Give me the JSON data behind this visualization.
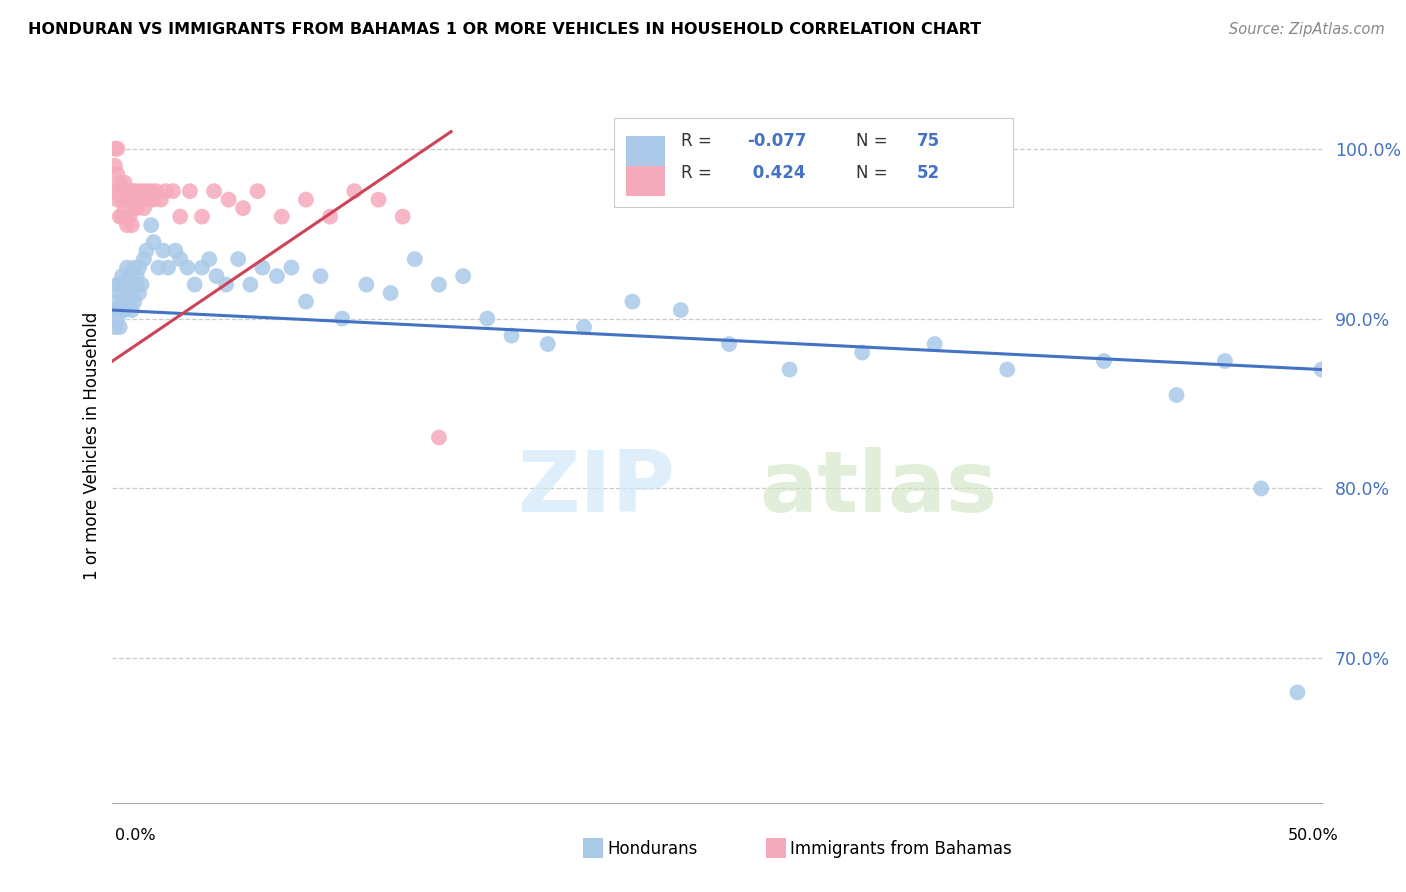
{
  "title": "HONDURAN VS IMMIGRANTS FROM BAHAMAS 1 OR MORE VEHICLES IN HOUSEHOLD CORRELATION CHART",
  "source": "Source: ZipAtlas.com",
  "ylabel": "1 or more Vehicles in Household",
  "ytick_labels": [
    "100.0%",
    "90.0%",
    "80.0%",
    "70.0%"
  ],
  "ytick_values": [
    1.0,
    0.9,
    0.8,
    0.7
  ],
  "xmin": 0.0,
  "xmax": 0.5,
  "ymin": 0.615,
  "ymax": 1.035,
  "R_blue": -0.077,
  "N_blue": 75,
  "R_pink": 0.424,
  "N_pink": 52,
  "blue_color": "#aac9e8",
  "pink_color": "#f5aabb",
  "blue_line_color": "#4472c4",
  "pink_line_color": "#cc4455",
  "legend_blue_label": "Hondurans",
  "legend_pink_label": "Immigrants from Bahamas",
  "watermark_zip": "ZIP",
  "watermark_atlas": "atlas",
  "blue_line_y0": 0.905,
  "blue_line_y1": 0.87,
  "pink_line_x0": 0.0,
  "pink_line_x1": 0.14,
  "pink_line_y0": 0.875,
  "pink_line_y1": 1.01,
  "blue_x": [
    0.001,
    0.001,
    0.002,
    0.002,
    0.002,
    0.003,
    0.003,
    0.003,
    0.003,
    0.004,
    0.004,
    0.004,
    0.005,
    0.005,
    0.005,
    0.006,
    0.006,
    0.006,
    0.007,
    0.007,
    0.007,
    0.008,
    0.008,
    0.009,
    0.009,
    0.01,
    0.01,
    0.011,
    0.011,
    0.012,
    0.013,
    0.014,
    0.016,
    0.017,
    0.019,
    0.021,
    0.023,
    0.026,
    0.028,
    0.031,
    0.034,
    0.037,
    0.04,
    0.043,
    0.047,
    0.052,
    0.057,
    0.062,
    0.068,
    0.074,
    0.08,
    0.086,
    0.095,
    0.105,
    0.115,
    0.125,
    0.135,
    0.145,
    0.155,
    0.165,
    0.18,
    0.195,
    0.215,
    0.235,
    0.255,
    0.28,
    0.31,
    0.34,
    0.37,
    0.41,
    0.44,
    0.46,
    0.475,
    0.49,
    0.5
  ],
  "blue_y": [
    0.905,
    0.895,
    0.91,
    0.9,
    0.92,
    0.915,
    0.905,
    0.895,
    0.92,
    0.91,
    0.905,
    0.925,
    0.92,
    0.91,
    0.905,
    0.93,
    0.915,
    0.92,
    0.91,
    0.925,
    0.915,
    0.905,
    0.92,
    0.93,
    0.91,
    0.925,
    0.92,
    0.93,
    0.915,
    0.92,
    0.935,
    0.94,
    0.955,
    0.945,
    0.93,
    0.94,
    0.93,
    0.94,
    0.935,
    0.93,
    0.92,
    0.93,
    0.935,
    0.925,
    0.92,
    0.935,
    0.92,
    0.93,
    0.925,
    0.93,
    0.91,
    0.925,
    0.9,
    0.92,
    0.915,
    0.935,
    0.92,
    0.925,
    0.9,
    0.89,
    0.885,
    0.895,
    0.91,
    0.905,
    0.885,
    0.87,
    0.88,
    0.885,
    0.87,
    0.875,
    0.855,
    0.875,
    0.8,
    0.68,
    0.87
  ],
  "pink_x": [
    0.001,
    0.001,
    0.001,
    0.002,
    0.002,
    0.002,
    0.003,
    0.003,
    0.003,
    0.004,
    0.004,
    0.004,
    0.005,
    0.005,
    0.005,
    0.006,
    0.006,
    0.007,
    0.007,
    0.007,
    0.008,
    0.008,
    0.008,
    0.009,
    0.009,
    0.01,
    0.01,
    0.011,
    0.012,
    0.013,
    0.014,
    0.015,
    0.016,
    0.017,
    0.018,
    0.02,
    0.022,
    0.025,
    0.028,
    0.032,
    0.037,
    0.042,
    0.048,
    0.054,
    0.06,
    0.07,
    0.08,
    0.09,
    0.1,
    0.11,
    0.12,
    0.135
  ],
  "pink_y": [
    1.0,
    0.99,
    0.975,
    0.985,
    0.97,
    1.0,
    0.975,
    0.96,
    0.98,
    0.97,
    0.96,
    0.975,
    0.965,
    0.98,
    0.96,
    0.97,
    0.955,
    0.97,
    0.975,
    0.96,
    0.97,
    0.955,
    0.975,
    0.965,
    0.975,
    0.965,
    0.975,
    0.97,
    0.975,
    0.965,
    0.975,
    0.97,
    0.975,
    0.97,
    0.975,
    0.97,
    0.975,
    0.975,
    0.96,
    0.975,
    0.96,
    0.975,
    0.97,
    0.965,
    0.975,
    0.96,
    0.97,
    0.96,
    0.975,
    0.97,
    0.96,
    0.83
  ]
}
